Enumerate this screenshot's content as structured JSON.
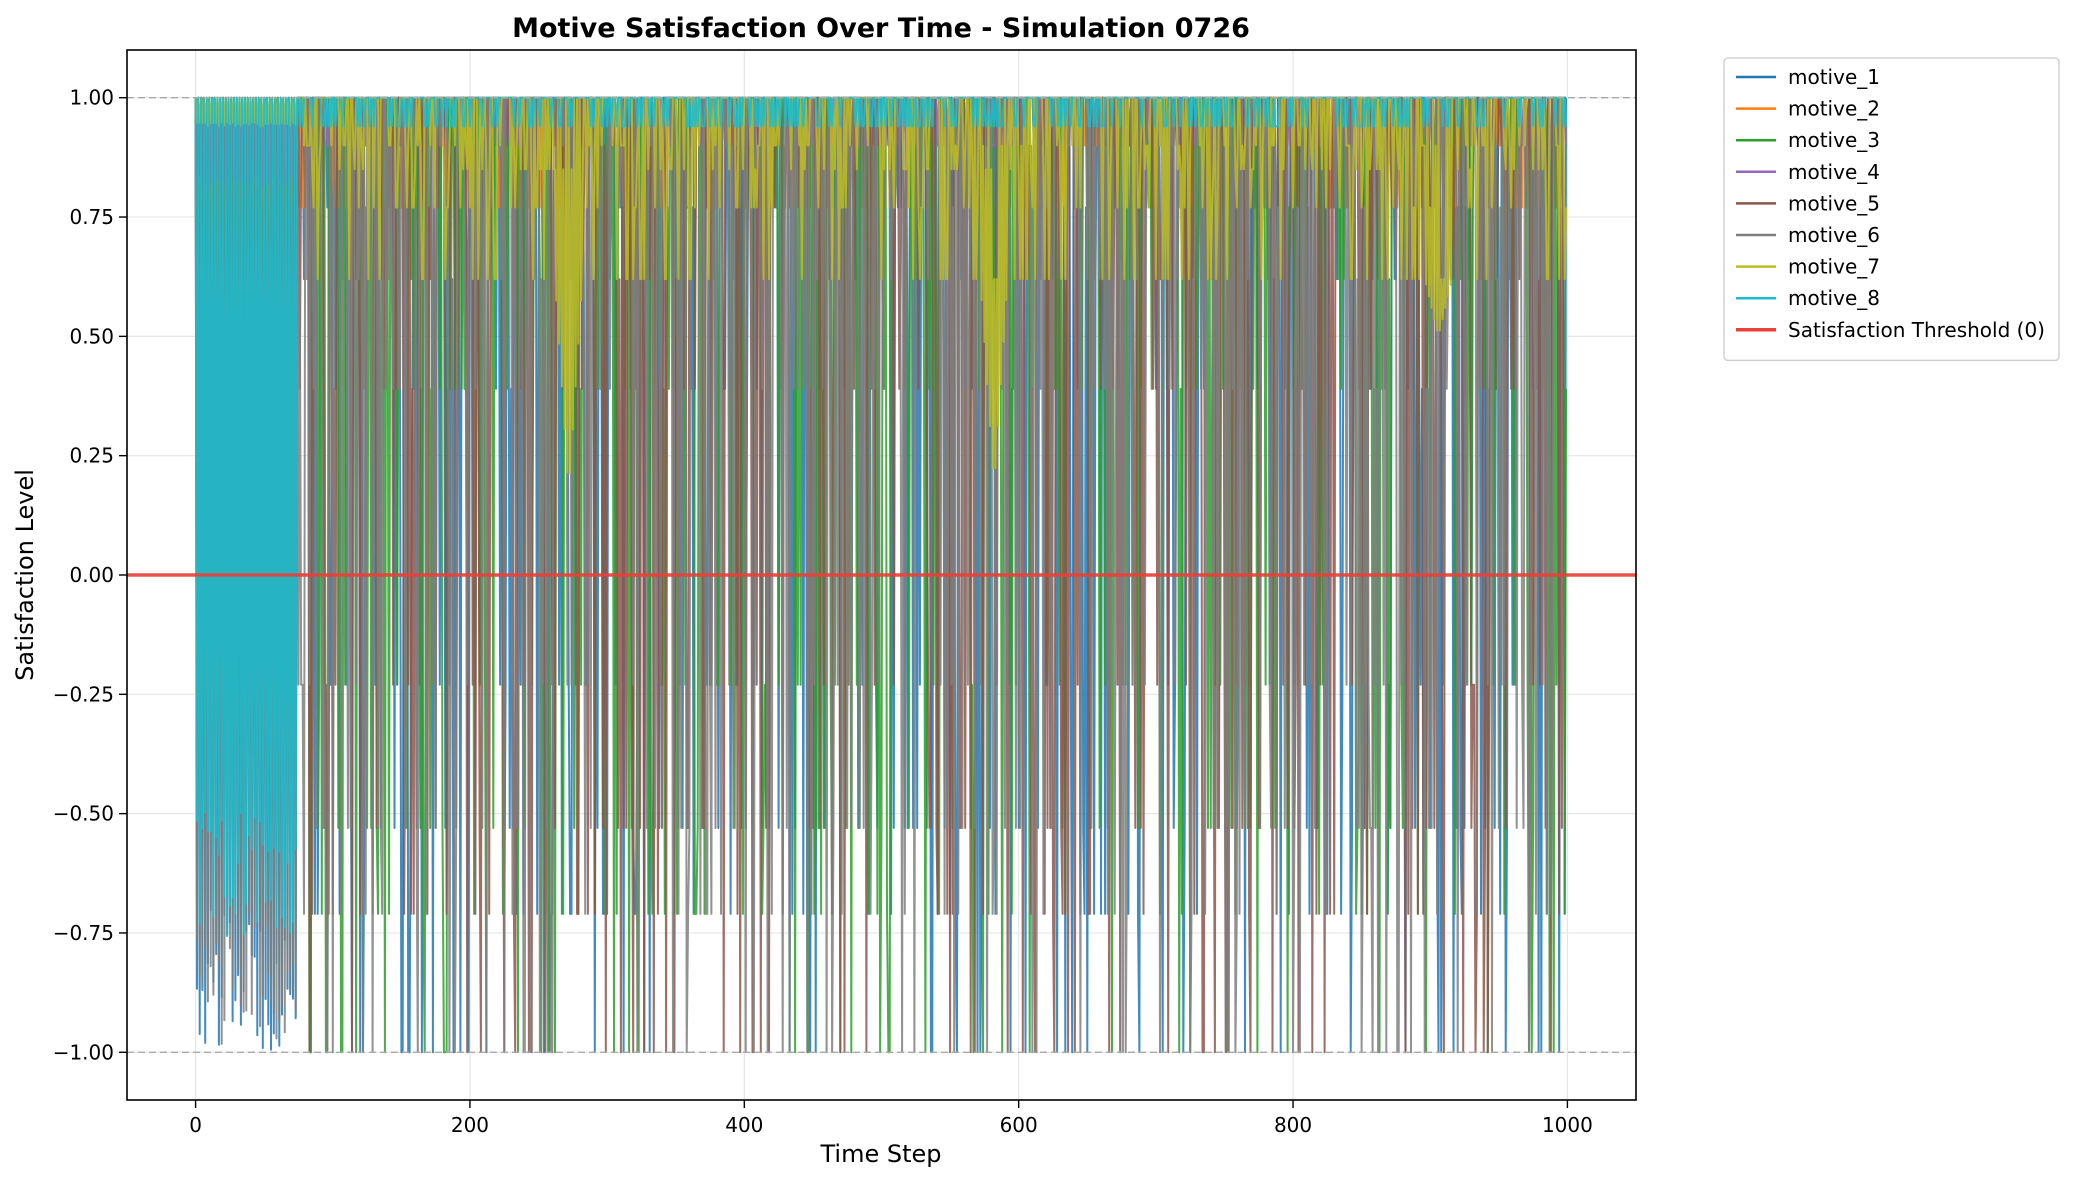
{
  "chart_data": {
    "type": "line",
    "title": "Motive Satisfaction Over Time - Simulation 0726",
    "xlabel": "Time Step",
    "ylabel": "Satisfaction Level",
    "xlim": [
      -50,
      1050
    ],
    "ylim": [
      -1.1,
      1.1
    ],
    "xticks": [
      0,
      200,
      400,
      600,
      800,
      1000
    ],
    "xtick_labels": [
      "0",
      "200",
      "400",
      "600",
      "800",
      "1000"
    ],
    "yticks": [
      1.0,
      0.75,
      0.5,
      0.25,
      0.0,
      -0.25,
      -0.5,
      -0.75,
      -1.0
    ],
    "ytick_labels": [
      "1.00",
      "0.75",
      "0.50",
      "0.25",
      "0.00",
      "−0.25",
      "−0.50",
      "−0.75",
      "−1.00"
    ],
    "grid": true,
    "legend_position": "outside-right-top",
    "reference_lines": [
      {
        "y": 1.0,
        "style": "dashed",
        "color": "#aaaaaa"
      },
      {
        "y": -1.0,
        "style": "dashed",
        "color": "#aaaaaa"
      }
    ],
    "threshold": {
      "name": "Satisfaction Threshold (0)",
      "y": 0,
      "color": "#e8403a"
    },
    "x_range": [
      0,
      999
    ],
    "series": [
      {
        "name": "motive_1",
        "color": "#1f77b4",
        "warmup_end": 75,
        "warmup_low": -1.0,
        "warmup_high": 1.0,
        "steady_levels": [
          -1.0,
          -0.71,
          -0.53,
          -0.23,
          0.39,
          0.62,
          0.77,
          0.9,
          1.0
        ]
      },
      {
        "name": "motive_2",
        "color": "#ff7f0e",
        "warmup_end": 75,
        "warmup_low": 0.69,
        "warmup_high": 1.0,
        "steady_levels": [
          0.77,
          0.9,
          1.0
        ]
      },
      {
        "name": "motive_3",
        "color": "#2ca02c",
        "warmup_end": 75,
        "warmup_low": -0.14,
        "warmup_high": 1.0,
        "steady_levels": [
          -1.0,
          -0.71,
          -0.53,
          -0.23,
          0.39,
          0.62,
          0.77,
          0.9,
          1.0
        ]
      },
      {
        "name": "motive_4",
        "color": "#9467bd",
        "warmup_end": 75,
        "warmup_low": 0.81,
        "warmup_high": 1.0,
        "steady_levels": [
          0.9,
          1.0
        ]
      },
      {
        "name": "motive_5",
        "color": "#8c564b",
        "warmup_end": 75,
        "warmup_low": -0.5,
        "warmup_high": 1.0,
        "steady_levels": [
          -1.0,
          -0.71,
          -0.53,
          -0.23,
          0.39,
          0.62,
          0.77,
          0.9,
          1.0
        ]
      },
      {
        "name": "motive_6",
        "color": "#7f7f7f",
        "warmup_end": 75,
        "warmup_low": -1.0,
        "warmup_high": 1.0,
        "steady_levels": [
          -1.0,
          -0.71,
          -0.53,
          -0.23,
          0.39,
          0.62,
          0.77,
          0.9,
          1.0
        ]
      },
      {
        "name": "motive_7",
        "color": "#bcbd22",
        "warmup_end": 75,
        "warmup_low": 0.94,
        "warmup_high": 1.0,
        "steady_levels": [
          0.62,
          0.77,
          0.85,
          0.9,
          1.0
        ],
        "dips": [
          {
            "x": 272,
            "min": 0.17
          },
          {
            "x": 582,
            "min": 0.18
          },
          {
            "x": 906,
            "min": 0.5
          }
        ]
      },
      {
        "name": "motive_8",
        "color": "#17becf",
        "warmup_end": 75,
        "warmup_low": -0.76,
        "warmup_high": 1.0,
        "steady_levels": [
          0.94,
          1.0
        ]
      }
    ]
  }
}
